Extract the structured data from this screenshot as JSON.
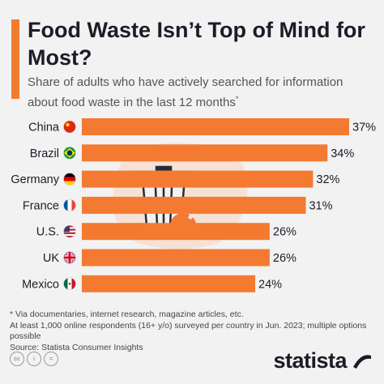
{
  "header": {
    "title": "Food Waste Isn’t Top of Mind for Most?",
    "subtitle": "Share of adults who have actively searched for information about food waste in the last 12 months",
    "subtitle_mark": "*"
  },
  "chart_data": {
    "type": "bar",
    "orientation": "horizontal",
    "categories": [
      "China",
      "Brazil",
      "Germany",
      "France",
      "U.S.",
      "UK",
      "Mexico"
    ],
    "values": [
      37,
      34,
      32,
      31,
      26,
      26,
      24
    ],
    "value_labels": [
      "37%",
      "34%",
      "32%",
      "31%",
      "26%",
      "26%",
      "24%"
    ],
    "xlim": [
      0,
      37
    ],
    "bar_color": "#f47a32",
    "grid": false
  },
  "footnote": {
    "line1": "* Via documentaries, internet research, magazine articles, etc.",
    "line2": "At least 1,000 online respondents (16+ y/o) surveyed per country in Jun. 2023; multiple options possible",
    "line3": "Source: Statista Consumer Insights"
  },
  "footer": {
    "license_icons": [
      "cc",
      "i",
      "="
    ],
    "brand": "statista"
  },
  "colors": {
    "accent": "#f07d2d",
    "bar": "#f47a32",
    "background": "#f2f2f2",
    "text": "#1c1c28"
  },
  "icons": {
    "flags": [
      "china-flag-icon",
      "brazil-flag-icon",
      "germany-flag-icon",
      "france-flag-icon",
      "us-flag-icon",
      "uk-flag-icon",
      "mexico-flag-icon"
    ],
    "illustration": "trash-can-drumstick-icon"
  }
}
